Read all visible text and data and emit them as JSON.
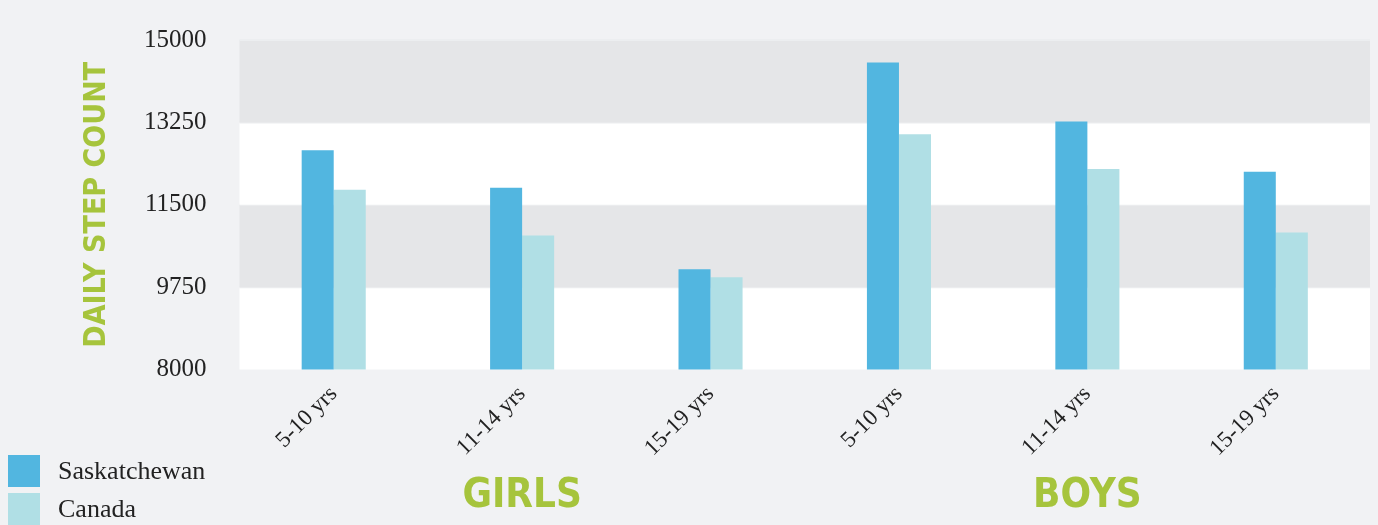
{
  "chart_data": {
    "type": "bar",
    "ylabel": "DAILY STEP COUNT",
    "categories": [
      "5-10 yrs",
      "11-14 yrs",
      "15-19 yrs",
      "5-10 yrs",
      "11-14 yrs",
      "15-19 yrs"
    ],
    "series": [
      {
        "name": "Saskatchewan",
        "color": "#52b6e0",
        "values": [
          12660,
          11860,
          10130,
          14520,
          13270,
          12200
        ]
      },
      {
        "name": "Canada",
        "color": "#b0dfe5",
        "values": [
          11820,
          10850,
          9960,
          13000,
          12260,
          10910
        ]
      }
    ],
    "ylim": [
      8000,
      15000
    ],
    "yticks": [
      8000,
      9750,
      11500,
      13250,
      15000
    ],
    "grid": "y",
    "legend": "bottom left",
    "annotations": [
      "GIRLS",
      "BOYS"
    ]
  }
}
